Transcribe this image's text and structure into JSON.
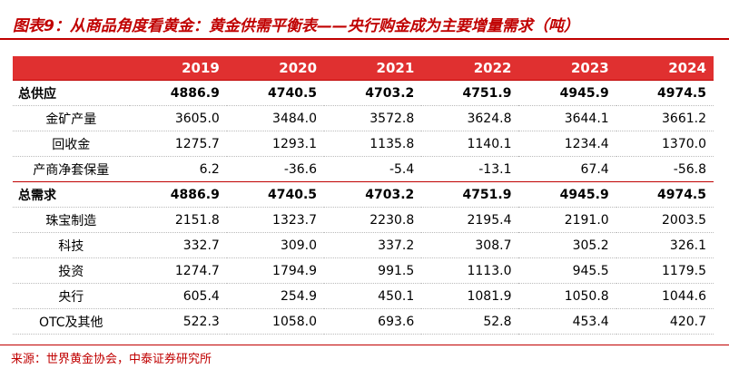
{
  "header": {
    "title": "图表9：从商品角度看黄金：黄金供需平衡表——央行购金成为主要增量需求（吨）"
  },
  "table": {
    "columns": [
      "",
      "2019",
      "2020",
      "2021",
      "2022",
      "2023",
      "2024"
    ],
    "rows": [
      [
        "总供应",
        "4886.9",
        "4740.5",
        "4703.2",
        "4751.9",
        "4945.9",
        "4974.5"
      ],
      [
        "金矿产量",
        "3605.0",
        "3484.0",
        "3572.8",
        "3624.8",
        "3644.1",
        "3661.2"
      ],
      [
        "回收金",
        "1275.7",
        "1293.1",
        "1135.8",
        "1140.1",
        "1234.4",
        "1370.0"
      ],
      [
        "产商净套保量",
        "6.2",
        "-36.6",
        "-5.4",
        "-13.1",
        "67.4",
        "-56.8"
      ],
      [
        "总需求",
        "4886.9",
        "4740.5",
        "4703.2",
        "4751.9",
        "4945.9",
        "4974.5"
      ],
      [
        "珠宝制造",
        "2151.8",
        "1323.7",
        "2230.8",
        "2195.4",
        "2191.0",
        "2003.5"
      ],
      [
        "科技",
        "332.7",
        "309.0",
        "337.2",
        "308.7",
        "305.2",
        "326.1"
      ],
      [
        "投资",
        "1274.7",
        "1794.9",
        "991.5",
        "1113.0",
        "945.5",
        "1179.5"
      ],
      [
        "央行",
        "605.4",
        "254.9",
        "450.1",
        "1081.9",
        "1050.8",
        "1044.6"
      ],
      [
        "OTC及其他",
        "522.3",
        "1058.0",
        "693.6",
        "52.8",
        "453.4",
        "420.7"
      ]
    ],
    "bold_rows": [
      0,
      4
    ]
  },
  "footer": {
    "source": "来源：世界黄金协会，中泰证券研究所"
  }
}
